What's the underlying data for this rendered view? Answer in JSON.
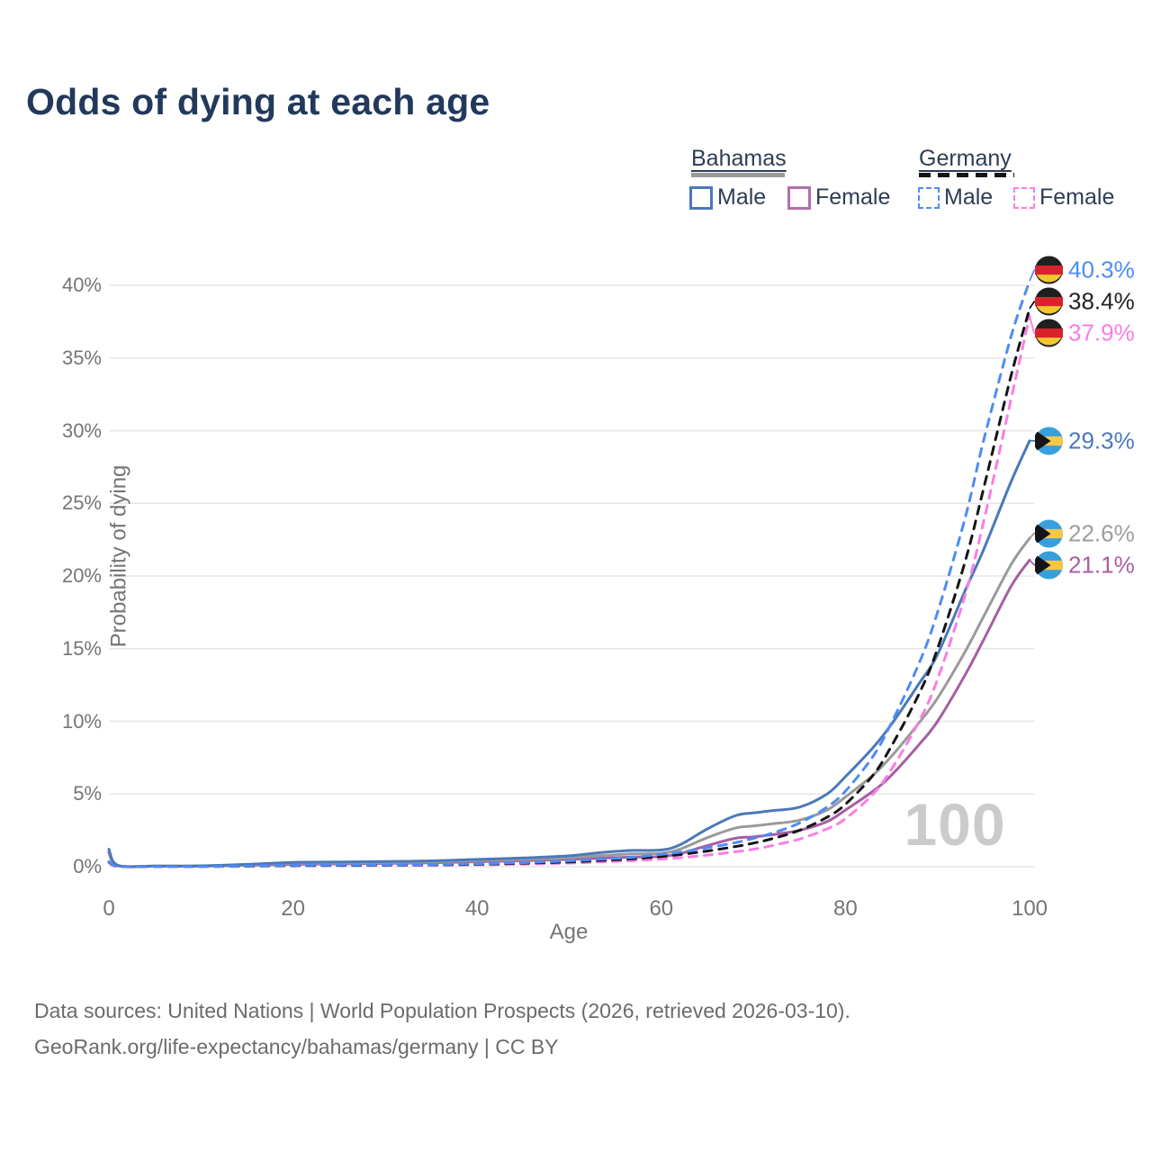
{
  "title": "Odds of dying at each age",
  "legend": {
    "groups": [
      {
        "label": "Bahamas",
        "line_style": "solid",
        "line_color": "#9a9a9a",
        "items": [
          {
            "label": "Male",
            "color": "#4a79ba",
            "dash": false
          },
          {
            "label": "Female",
            "color": "#b06fae",
            "dash": false
          }
        ]
      },
      {
        "label": "Germany",
        "line_style": "dashed",
        "line_color": "#141414",
        "items": [
          {
            "label": "Male",
            "color": "#4e8cf6",
            "dash": true
          },
          {
            "label": "Female",
            "color": "#fb7de2",
            "dash": true
          }
        ]
      }
    ]
  },
  "chart_data": {
    "type": "line",
    "title": "Odds of dying at each age",
    "xlabel": "Age",
    "ylabel": "Probability of dying",
    "xlim": [
      0,
      100
    ],
    "ylim": [
      0,
      40
    ],
    "x_ticks": [
      0,
      20,
      40,
      60,
      80,
      100
    ],
    "y_ticks": [
      {
        "value": 0,
        "label": "0%"
      },
      {
        "value": 5,
        "label": "5%"
      },
      {
        "value": 10,
        "label": "10%"
      },
      {
        "value": 15,
        "label": "15%"
      },
      {
        "value": 20,
        "label": "20%"
      },
      {
        "value": 25,
        "label": "25%"
      },
      {
        "value": 30,
        "label": "30%"
      },
      {
        "value": 35,
        "label": "35%"
      },
      {
        "value": 40,
        "label": "40%"
      }
    ],
    "grid": true,
    "legend_position": "top-right",
    "watermark": "100",
    "x": [
      0,
      1,
      5,
      10,
      15,
      20,
      25,
      30,
      35,
      40,
      45,
      50,
      53,
      55,
      57,
      60,
      62,
      65,
      68,
      70,
      72,
      75,
      78,
      80,
      83,
      85,
      88,
      90,
      93,
      95,
      98,
      100
    ],
    "series": [
      {
        "name": "Bahamas Female",
        "country": "Bahamas",
        "sex": "female",
        "color": "#a75ea3",
        "dash": false,
        "flag": "bahamas",
        "end_label": "21.1%",
        "end_value": 21.1,
        "values": [
          0.95,
          0.07,
          0.04,
          0.04,
          0.09,
          0.16,
          0.19,
          0.22,
          0.27,
          0.34,
          0.41,
          0.5,
          0.58,
          0.62,
          0.66,
          0.7,
          0.9,
          1.45,
          1.95,
          2.05,
          2.2,
          2.5,
          3.1,
          3.9,
          5.2,
          6.3,
          8.4,
          10.0,
          13.2,
          15.6,
          19.3,
          21.1
        ]
      },
      {
        "name": "Bahamas",
        "country": "Bahamas",
        "sex": "both",
        "color": "#9a9a9a",
        "dash": false,
        "flag": "bahamas",
        "end_label": "22.6%",
        "end_value": 22.6,
        "values": [
          1.05,
          0.08,
          0.04,
          0.05,
          0.12,
          0.22,
          0.25,
          0.28,
          0.33,
          0.42,
          0.5,
          0.62,
          0.75,
          0.82,
          0.88,
          0.92,
          1.2,
          2.0,
          2.65,
          2.8,
          2.95,
          3.2,
          3.9,
          4.8,
          6.3,
          7.6,
          9.9,
          11.6,
          14.8,
          17.2,
          20.8,
          22.6
        ]
      },
      {
        "name": "Bahamas Male",
        "country": "Bahamas",
        "sex": "male",
        "color": "#4a79ba",
        "dash": false,
        "flag": "bahamas",
        "end_label": "29.3%",
        "end_value": 29.3,
        "values": [
          1.2,
          0.09,
          0.05,
          0.06,
          0.16,
          0.3,
          0.32,
          0.35,
          0.4,
          0.5,
          0.6,
          0.75,
          0.95,
          1.05,
          1.12,
          1.15,
          1.5,
          2.6,
          3.5,
          3.7,
          3.85,
          4.1,
          5.0,
          6.2,
          8.2,
          9.8,
          12.6,
          14.6,
          19.0,
          21.8,
          26.5,
          29.3
        ]
      },
      {
        "name": "Germany Female",
        "country": "Germany",
        "sex": "female",
        "color": "#fb7de2",
        "dash": true,
        "flag": "germany",
        "end_label": "37.9%",
        "end_value": 37.9,
        "values": [
          0.3,
          0.02,
          0.01,
          0.01,
          0.03,
          0.06,
          0.07,
          0.08,
          0.1,
          0.13,
          0.18,
          0.25,
          0.32,
          0.37,
          0.42,
          0.52,
          0.62,
          0.8,
          1.02,
          1.2,
          1.45,
          1.9,
          2.6,
          3.3,
          5.0,
          6.7,
          10.0,
          12.9,
          18.7,
          23.7,
          32.2,
          37.9
        ]
      },
      {
        "name": "Germany",
        "country": "Germany",
        "sex": "both",
        "color": "#141414",
        "dash": true,
        "flag": "germany",
        "end_label": "38.4%",
        "end_value": 38.4,
        "values": [
          0.32,
          0.03,
          0.02,
          0.02,
          0.04,
          0.08,
          0.09,
          0.11,
          0.13,
          0.17,
          0.24,
          0.33,
          0.42,
          0.48,
          0.55,
          0.7,
          0.83,
          1.08,
          1.38,
          1.62,
          1.92,
          2.5,
          3.4,
          4.3,
          6.3,
          8.3,
          11.9,
          15.0,
          21.0,
          26.0,
          33.8,
          38.4
        ]
      },
      {
        "name": "Germany Male",
        "country": "Germany",
        "sex": "male",
        "color": "#4e8cf6",
        "dash": true,
        "flag": "germany",
        "end_label": "40.3%",
        "end_value": 40.3,
        "values": [
          0.35,
          0.03,
          0.02,
          0.02,
          0.05,
          0.1,
          0.11,
          0.13,
          0.15,
          0.2,
          0.28,
          0.4,
          0.5,
          0.57,
          0.65,
          0.85,
          1.0,
          1.3,
          1.65,
          1.95,
          2.3,
          3.0,
          4.1,
          5.2,
          7.6,
          9.9,
          14.0,
          17.5,
          24.0,
          29.3,
          36.5,
          40.3
        ]
      }
    ],
    "end_label_text_colors": {
      "Germany Male": "#4a8cf7",
      "Germany": "#222222",
      "Germany Female": "#fb7ce4",
      "Bahamas Male": "#4a79ba",
      "Bahamas": "#9e9e9e",
      "Bahamas Female": "#a75ea3"
    }
  },
  "footer": {
    "line1": "Data sources: United Nations | World Population Prospects (2026, retrieved 2026-03-10).",
    "line2": "GeoRank.org/life-expectancy/bahamas/germany | CC BY"
  }
}
